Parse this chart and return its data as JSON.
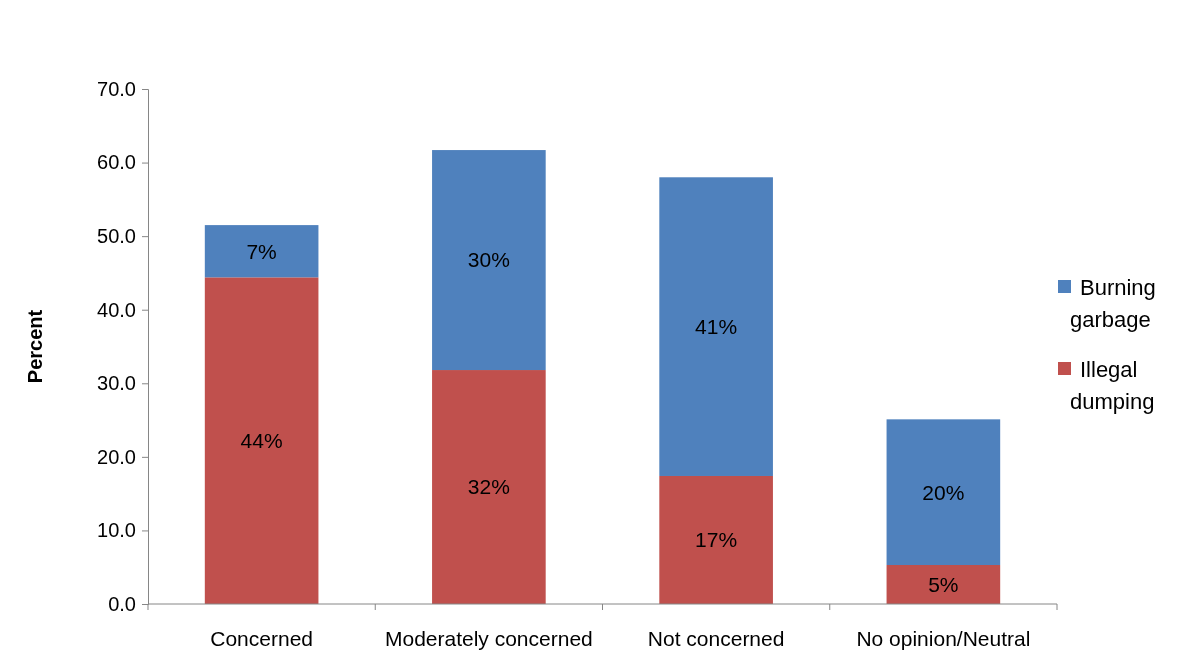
{
  "chart_data": {
    "type": "bar",
    "stacked": true,
    "ylabel": "Percent",
    "categories": [
      "Concerned",
      "Moderately concerned",
      "Not concerned",
      "No opinion/Neutral"
    ],
    "series": [
      {
        "name": "Illegal dumping",
        "color": "#c0504d",
        "values": [
          44.4,
          31.8,
          17.4,
          5.3
        ],
        "value_labels": [
          "44%",
          "32%",
          "17%",
          "5%"
        ]
      },
      {
        "name": "Burning garbage",
        "color": "#4f81bd",
        "values": [
          7.1,
          29.9,
          40.6,
          19.8
        ],
        "value_labels": [
          "7%",
          "30%",
          "41%",
          "20%"
        ]
      }
    ],
    "ylim": [
      0,
      70
    ],
    "yticks": [
      {
        "value": 0,
        "label": "0.0"
      },
      {
        "value": 10,
        "label": "10.0"
      },
      {
        "value": 20,
        "label": "20.0"
      },
      {
        "value": 30,
        "label": "30.0"
      },
      {
        "value": 40,
        "label": "40.0"
      },
      {
        "value": 50,
        "label": "50.0"
      },
      {
        "value": 60,
        "label": "60.0"
      },
      {
        "value": 70,
        "label": "70.0"
      }
    ],
    "grid": false,
    "legend": "right"
  }
}
